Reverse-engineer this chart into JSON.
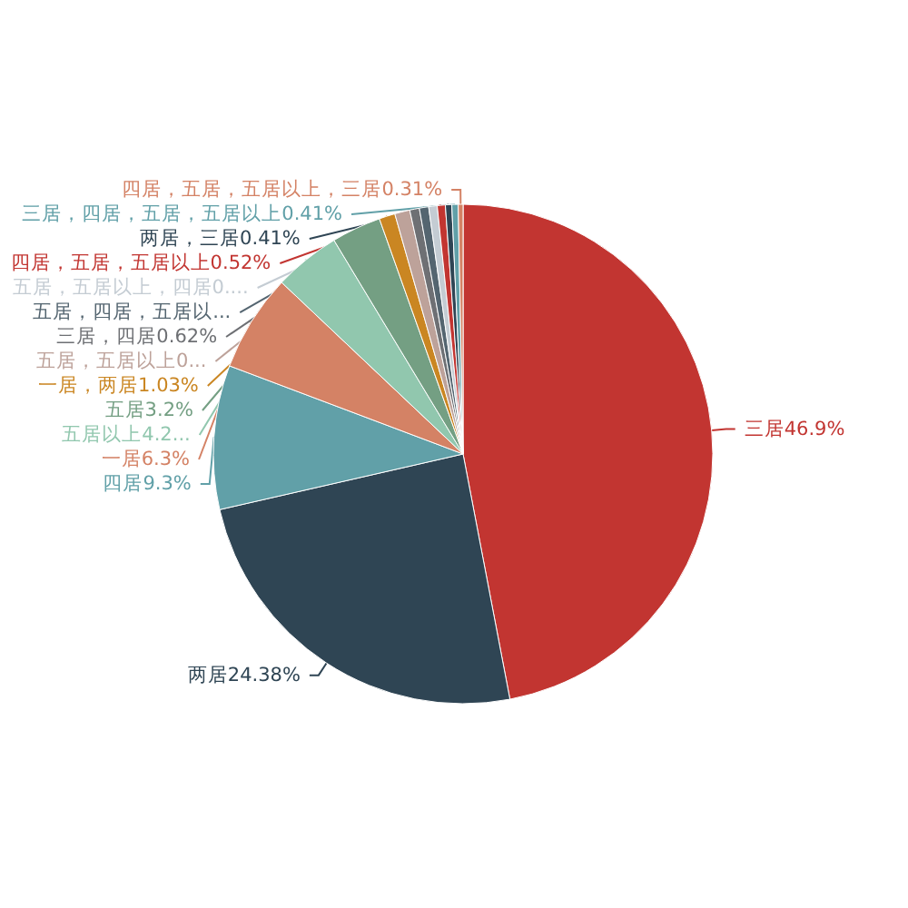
{
  "chart_data": {
    "type": "pie",
    "categories": [
      "三居",
      "两居",
      "四居",
      "一居",
      "五居以上",
      "五居",
      "一居，两居",
      "五居，五居以上",
      "三居，四居",
      "五居，四居，五居以...",
      "五居，五居以上，四居",
      "四居，五居，五居以上",
      "两居，三居",
      "三居，四居，五居，五居以上",
      "四居，五居，五居以上，三居"
    ],
    "values": [
      46.9,
      24.38,
      9.3,
      6.3,
      4.29,
      3.2,
      1.03,
      0.98,
      0.62,
      0.6,
      0.55,
      0.52,
      0.41,
      0.41,
      0.31
    ],
    "value_labels": [
      "46.9%",
      "24.38%",
      "9.3%",
      "6.3%",
      "4.2...",
      "3.2%",
      "1.03%",
      "0...",
      "0.62%",
      null,
      "0....",
      "0.52%",
      "0.41%",
      "0.41%",
      "0.31%"
    ],
    "colors": [
      "#c23531",
      "#2f4554",
      "#61a0a8",
      "#d48265",
      "#91c7ae",
      "#749f83",
      "#ca8622",
      "#bda29a",
      "#6e7074",
      "#546570",
      "#c4ccd3",
      "#c23531",
      "#2f4554",
      "#61a0a8",
      "#d48265"
    ],
    "legend": false
  }
}
